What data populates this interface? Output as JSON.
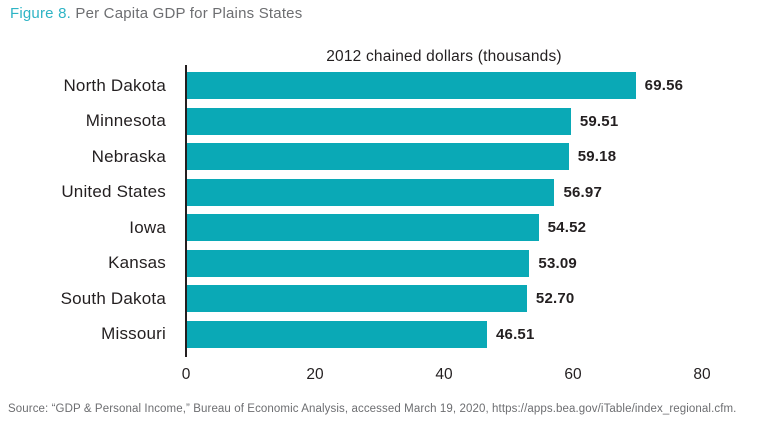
{
  "figure_title": {
    "prefix": "Figure 8.",
    "rest": " Per Capita GDP for Plains States"
  },
  "chart_data": {
    "type": "bar",
    "orientation": "horizontal",
    "title": "2012 chained dollars (thousands)",
    "categories": [
      "North Dakota",
      "Minnesota",
      "Nebraska",
      "United States",
      "Iowa",
      "Kansas",
      "South Dakota",
      "Missouri"
    ],
    "values": [
      69.56,
      59.51,
      59.18,
      56.97,
      54.52,
      53.09,
      52.7,
      46.51
    ],
    "value_labels": [
      "69.56",
      "59.51",
      "59.18",
      "56.97",
      "54.52",
      "53.09",
      "52.70",
      "46.51"
    ],
    "xlabel": "",
    "ylabel": "",
    "xlim": [
      0,
      80
    ],
    "x_ticks": [
      "0",
      "20",
      "40",
      "60",
      "80"
    ],
    "grid": false,
    "legend": false,
    "bar_color": "#0aa9b6"
  },
  "source": "Source: “GDP & Personal Income,” Bureau of Economic Analysis, accessed March 19, 2020, https://apps.bea.gov/iTable/index_regional.cfm.",
  "colors": {
    "figure_number_teal": "#2eb4c5",
    "bar_teal": "#0aa9b6",
    "muted_gray": "#6d6e71",
    "text_dark": "#231f20"
  }
}
